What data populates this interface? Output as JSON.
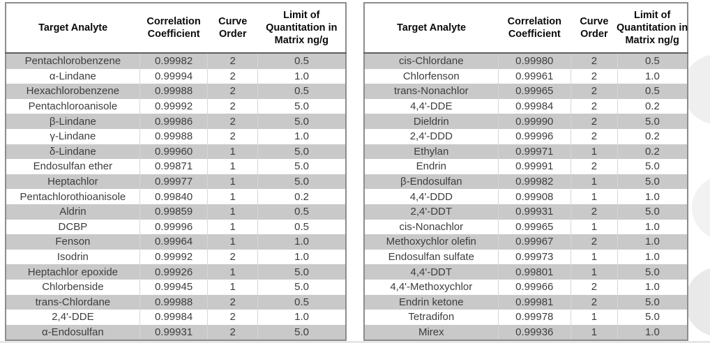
{
  "columns": [
    "Target Analyte",
    "Correlation\nCoefficient",
    "Curve\nOrder",
    "Limit of\nQuantitation in\nMatrix ng/g"
  ],
  "tables": [
    {
      "name": "left",
      "rows": [
        [
          "Pentachlorobenzene",
          "0.99982",
          "2",
          "0.5"
        ],
        [
          "α-Lindane",
          "0.99994",
          "2",
          "1.0"
        ],
        [
          "Hexachlorobenzene",
          "0.99988",
          "2",
          "0.5"
        ],
        [
          "Pentachloroanisole",
          "0.99992",
          "2",
          "5.0"
        ],
        [
          "β-Lindane",
          "0.99986",
          "2",
          "5.0"
        ],
        [
          "γ-Lindane",
          "0.99988",
          "2",
          "1.0"
        ],
        [
          "δ-Lindane",
          "0.99960",
          "1",
          "5.0"
        ],
        [
          "Endosulfan ether",
          "0.99871",
          "1",
          "5.0"
        ],
        [
          "Heptachlor",
          "0.99977",
          "1",
          "5.0"
        ],
        [
          "Pentachlorothioanisole",
          "0.99840",
          "1",
          "0.2"
        ],
        [
          "Aldrin",
          "0.99859",
          "1",
          "0.5"
        ],
        [
          "DCBP",
          "0.99996",
          "1",
          "0.5"
        ],
        [
          "Fenson",
          "0.99964",
          "1",
          "1.0"
        ],
        [
          "Isodrin",
          "0.99992",
          "2",
          "1.0"
        ],
        [
          "Heptachlor epoxide",
          "0.99926",
          "1",
          "5.0"
        ],
        [
          "Chlorbenside",
          "0.99945",
          "1",
          "5.0"
        ],
        [
          "trans-Chlordane",
          "0.99988",
          "2",
          "0.5"
        ],
        [
          "2,4'-DDE",
          "0.99984",
          "2",
          "1.0"
        ],
        [
          "α-Endosulfan",
          "0.99931",
          "2",
          "5.0"
        ]
      ]
    },
    {
      "name": "right",
      "rows": [
        [
          "cis-Chlordane",
          "0.99980",
          "2",
          "0.5"
        ],
        [
          "Chlorfenson",
          "0.99961",
          "2",
          "1.0"
        ],
        [
          "trans-Nonachlor",
          "0.99965",
          "2",
          "0.5"
        ],
        [
          "4,4'-DDE",
          "0.99984",
          "2",
          "0.2"
        ],
        [
          "Dieldrin",
          "0.99990",
          "2",
          "5.0"
        ],
        [
          "2,4'-DDD",
          "0.99996",
          "2",
          "0.2"
        ],
        [
          "Ethylan",
          "0.99971",
          "1",
          "0.2"
        ],
        [
          "Endrin",
          "0.99991",
          "2",
          "5.0"
        ],
        [
          "β-Endosulfan",
          "0.99982",
          "1",
          "5.0"
        ],
        [
          "4,4'-DDD",
          "0.99908",
          "1",
          "1.0"
        ],
        [
          "2,4'-DDT",
          "0.99931",
          "2",
          "5.0"
        ],
        [
          "cis-Nonachlor",
          "0.99965",
          "1",
          "1.0"
        ],
        [
          "Methoxychlor olefin",
          "0.99967",
          "2",
          "1.0"
        ],
        [
          "Endosulfan sulfate",
          "0.99973",
          "1",
          "1.0"
        ],
        [
          "4,4'-DDT",
          "0.99801",
          "1",
          "5.0"
        ],
        [
          "4,4'-Methoxychlor",
          "0.99966",
          "2",
          "1.0"
        ],
        [
          "Endrin ketone",
          "0.99981",
          "2",
          "5.0"
        ],
        [
          "Tetradifon",
          "0.99978",
          "1",
          "5.0"
        ],
        [
          "Mirex",
          "0.99936",
          "1",
          "1.0"
        ]
      ]
    }
  ],
  "colors": {
    "row_stripe": "#c9c9c9",
    "outer_border": "#8c8c8c",
    "header_underline": "#5f5f5f",
    "body_text": "#3d3d3d",
    "header_text": "#0a0a0a",
    "watermark_circle": "#ededed"
  }
}
